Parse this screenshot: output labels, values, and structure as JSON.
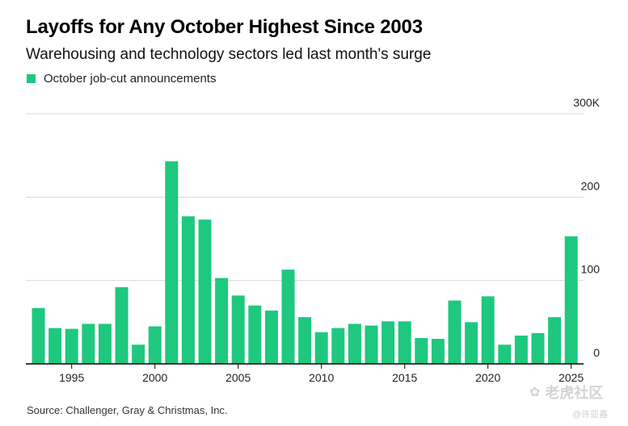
{
  "title": "Layoffs for Any October Highest Since 2003",
  "subtitle": "Warehousing and technology sectors led last month's surge",
  "source": "Source: Challenger, Gray & Christmas, Inc.",
  "watermark": {
    "text": "老虎社区",
    "sub": "@许亚鑫"
  },
  "colors": {
    "bar": "#1ec87f",
    "grid": "#d9d9d9",
    "axis": "#000000"
  },
  "chart_data": {
    "type": "bar",
    "legend": {
      "label": "October job-cut announcements",
      "position": "top-left"
    },
    "categories": [
      1993,
      1994,
      1995,
      1996,
      1997,
      1998,
      1999,
      2000,
      2001,
      2002,
      2003,
      2004,
      2005,
      2006,
      2007,
      2008,
      2009,
      2010,
      2011,
      2012,
      2013,
      2014,
      2015,
      2016,
      2017,
      2018,
      2019,
      2020,
      2021,
      2022,
      2023,
      2024,
      2025
    ],
    "series": [
      {
        "name": "October job-cut announcements",
        "values": [
          67,
          43,
          42,
          48,
          48,
          92,
          23,
          45,
          243,
          177,
          173,
          103,
          82,
          70,
          64,
          113,
          56,
          38,
          43,
          48,
          46,
          51,
          51,
          31,
          30,
          76,
          50,
          81,
          23,
          34,
          37,
          56,
          153
        ]
      }
    ],
    "xticks": [
      "1995",
      "2000",
      "2005",
      "2010",
      "2015",
      "2020",
      "2025"
    ],
    "yticks": [
      "0",
      "100",
      "200",
      "300K"
    ],
    "ylim": [
      0,
      300
    ],
    "grid": true
  }
}
